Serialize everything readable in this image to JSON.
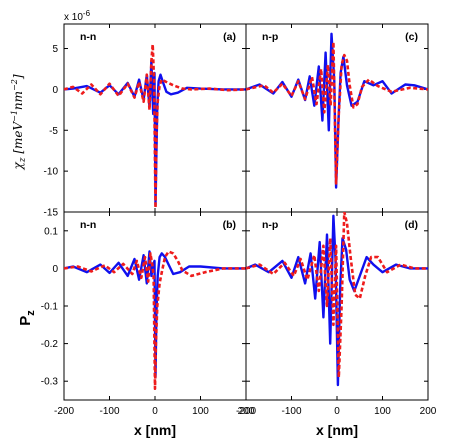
{
  "exponent_label": "x 10",
  "exponent_power": "-6",
  "chart_data": [
    {
      "panel": "(a)",
      "corner_label": "n-n",
      "type": "line",
      "ylabel": "χz [meV⁻¹nm⁻²]",
      "xlim": [
        -200,
        200
      ],
      "ylim": [
        -15,
        8
      ],
      "yticks": [
        5,
        0,
        -5,
        -10,
        -15
      ],
      "ytick_labels": [
        "5",
        "0",
        "-5",
        "-10",
        "-15"
      ],
      "series": [
        {
          "color": "#1010ee",
          "dash": false,
          "x": [
            -200,
            -180,
            -150,
            -120,
            -100,
            -80,
            -60,
            -45,
            -35,
            -25,
            -18,
            -12,
            -8,
            -4,
            -1,
            1,
            3,
            5,
            8,
            12,
            18,
            25,
            35,
            50,
            70,
            100,
            150,
            200
          ],
          "y": [
            0,
            0.1,
            0.4,
            -0.4,
            0.5,
            -0.6,
            0.8,
            -0.9,
            1.2,
            -1.3,
            1.8,
            -2.2,
            3.5,
            -3,
            2,
            -14.2,
            -8,
            -2,
            1,
            1.8,
            0.8,
            -0.3,
            -0.6,
            -0.4,
            0.2,
            0.1,
            0,
            0
          ]
        },
        {
          "color": "#ee1c1c",
          "dash": true,
          "x": [
            -200,
            -180,
            -160,
            -140,
            -120,
            -100,
            -80,
            -60,
            -45,
            -35,
            -25,
            -18,
            -12,
            -8,
            -5,
            -2,
            1,
            3,
            6,
            10,
            15,
            25,
            40,
            60,
            80,
            120,
            160,
            200
          ],
          "y": [
            0,
            0.3,
            -0.5,
            0.6,
            -0.6,
            0.7,
            -0.8,
            0.7,
            -1,
            0.9,
            -1.5,
            1.8,
            -2.5,
            3.5,
            5.5,
            1,
            -14.5,
            -6,
            -1.5,
            0.5,
            1.2,
            0.9,
            0.5,
            0.1,
            0,
            0.1,
            -0.1,
            0
          ]
        }
      ]
    },
    {
      "panel": "(c)",
      "corner_label": "n-p",
      "type": "line",
      "xlim": [
        -200,
        200
      ],
      "ylim": [
        -15,
        8
      ],
      "series": [
        {
          "color": "#1010ee",
          "dash": false,
          "x": [
            -200,
            -170,
            -140,
            -120,
            -100,
            -85,
            -70,
            -60,
            -50,
            -40,
            -32,
            -25,
            -18,
            -12,
            -6,
            -2,
            3,
            8,
            14,
            22,
            32,
            45,
            60,
            80,
            100,
            120,
            150,
            170,
            200
          ],
          "y": [
            0,
            0.6,
            -0.5,
            0.9,
            -0.9,
            1.2,
            -1.3,
            1.6,
            -2,
            2.8,
            -3.8,
            4.5,
            -5,
            6.8,
            1,
            -12,
            -4,
            2,
            4,
            0.5,
            -2,
            -1.5,
            1,
            0.5,
            1,
            -0.5,
            0.6,
            0.5,
            0
          ]
        },
        {
          "color": "#ee1c1c",
          "dash": true,
          "x": [
            -200,
            -160,
            -140,
            -120,
            -100,
            -85,
            -70,
            -55,
            -45,
            -35,
            -28,
            -20,
            -14,
            -8,
            -2,
            4,
            10,
            16,
            22,
            28,
            36,
            45,
            55,
            70,
            90,
            120,
            160,
            200
          ],
          "y": [
            0,
            0.5,
            -0.4,
            0.7,
            -0.8,
            1,
            -1.2,
            1.5,
            -1.8,
            2.5,
            -2.8,
            3,
            -2,
            5.8,
            -11.5,
            -3,
            3,
            4.2,
            3.5,
            0.5,
            -2.2,
            -1.8,
            0.3,
            1.2,
            0.4,
            -0.3,
            0.2,
            0
          ]
        }
      ]
    },
    {
      "panel": "(b)",
      "corner_label": "n-n",
      "type": "line",
      "ylabel": "Pz",
      "xlabel": "x [nm]",
      "xlim": [
        -200,
        200
      ],
      "ylim": [
        -0.35,
        0.15
      ],
      "yticks": [
        0.1,
        0,
        -0.1,
        -0.2,
        -0.3
      ],
      "ytick_labels": [
        "0.1",
        "0",
        "-0.1",
        "-0.2",
        "-0.3"
      ],
      "xticks": [
        -200,
        -100,
        0,
        100,
        200
      ],
      "xtick_labels": [
        "-200",
        "-100",
        "0",
        "100",
        "200"
      ],
      "series": [
        {
          "color": "#1010ee",
          "dash": false,
          "x": [
            -200,
            -180,
            -150,
            -120,
            -100,
            -80,
            -60,
            -45,
            -35,
            -25,
            -18,
            -12,
            -8,
            -4,
            -1,
            1,
            3,
            6,
            10,
            15,
            22,
            30,
            40,
            55,
            75,
            100,
            150,
            200
          ],
          "y": [
            0,
            0.005,
            -0.01,
            0.01,
            -0.012,
            0.015,
            -0.02,
            0.025,
            -0.03,
            0.035,
            -0.04,
            0.045,
            -0.02,
            0.01,
            0.02,
            -0.29,
            -0.12,
            -0.02,
            0.03,
            0.04,
            0.03,
            0.01,
            -0.015,
            -0.01,
            0.005,
            0.005,
            0,
            0
          ]
        },
        {
          "color": "#ee1c1c",
          "dash": true,
          "x": [
            -200,
            -170,
            -140,
            -110,
            -90,
            -70,
            -50,
            -40,
            -30,
            -22,
            -15,
            -10,
            -6,
            -3,
            0,
            2,
            5,
            10,
            15,
            22,
            30,
            40,
            50,
            60,
            80,
            110,
            150,
            200
          ],
          "y": [
            0,
            0.005,
            -0.008,
            0.008,
            -0.01,
            0.012,
            -0.015,
            0.02,
            -0.025,
            0.03,
            -0.035,
            0.04,
            0.01,
            -0.02,
            -0.32,
            -0.2,
            -0.1,
            -0.04,
            -0.01,
            0.03,
            0.045,
            0.04,
            0.02,
            -0.005,
            -0.02,
            -0.01,
            0,
            0
          ]
        }
      ]
    },
    {
      "panel": "(d)",
      "corner_label": "n-p",
      "type": "line",
      "xlabel": "x [nm]",
      "xlim": [
        -200,
        200
      ],
      "ylim": [
        -0.35,
        0.15
      ],
      "xticks": [
        -200,
        -100,
        0,
        100,
        200
      ],
      "xtick_labels": [
        "-200",
        "-100",
        "0",
        "100",
        "200"
      ],
      "series": [
        {
          "color": "#1010ee",
          "dash": false,
          "x": [
            -200,
            -180,
            -150,
            -120,
            -100,
            -85,
            -70,
            -58,
            -48,
            -38,
            -30,
            -22,
            -15,
            -8,
            -3,
            2,
            7,
            12,
            20,
            28,
            38,
            50,
            65,
            80,
            100,
            130,
            160,
            200
          ],
          "y": [
            0,
            0.01,
            -0.01,
            0.02,
            -0.025,
            0.03,
            -0.04,
            0.04,
            -0.08,
            0.07,
            -0.13,
            0.09,
            -0.2,
            0.14,
            0.02,
            -0.31,
            -0.05,
            0.08,
            0.05,
            -0.03,
            -0.06,
            -0.02,
            0.03,
            0.01,
            -0.01,
            0.01,
            0,
            0
          ]
        },
        {
          "color": "#ee1c1c",
          "dash": true,
          "x": [
            -200,
            -170,
            -140,
            -115,
            -95,
            -80,
            -65,
            -50,
            -40,
            -30,
            -22,
            -15,
            -8,
            -2,
            4,
            10,
            16,
            22,
            30,
            40,
            50,
            62,
            75,
            90,
            110,
            140,
            170,
            200
          ],
          "y": [
            0,
            0.01,
            -0.015,
            0.015,
            -0.02,
            0.025,
            -0.03,
            0.035,
            -0.06,
            0.06,
            -0.1,
            0.08,
            -0.15,
            0.06,
            -0.29,
            -0.1,
            0.15,
            0.12,
            0.03,
            -0.07,
            -0.08,
            -0.02,
            0.03,
            0.03,
            -0.01,
            0.01,
            0,
            0
          ]
        }
      ]
    }
  ]
}
